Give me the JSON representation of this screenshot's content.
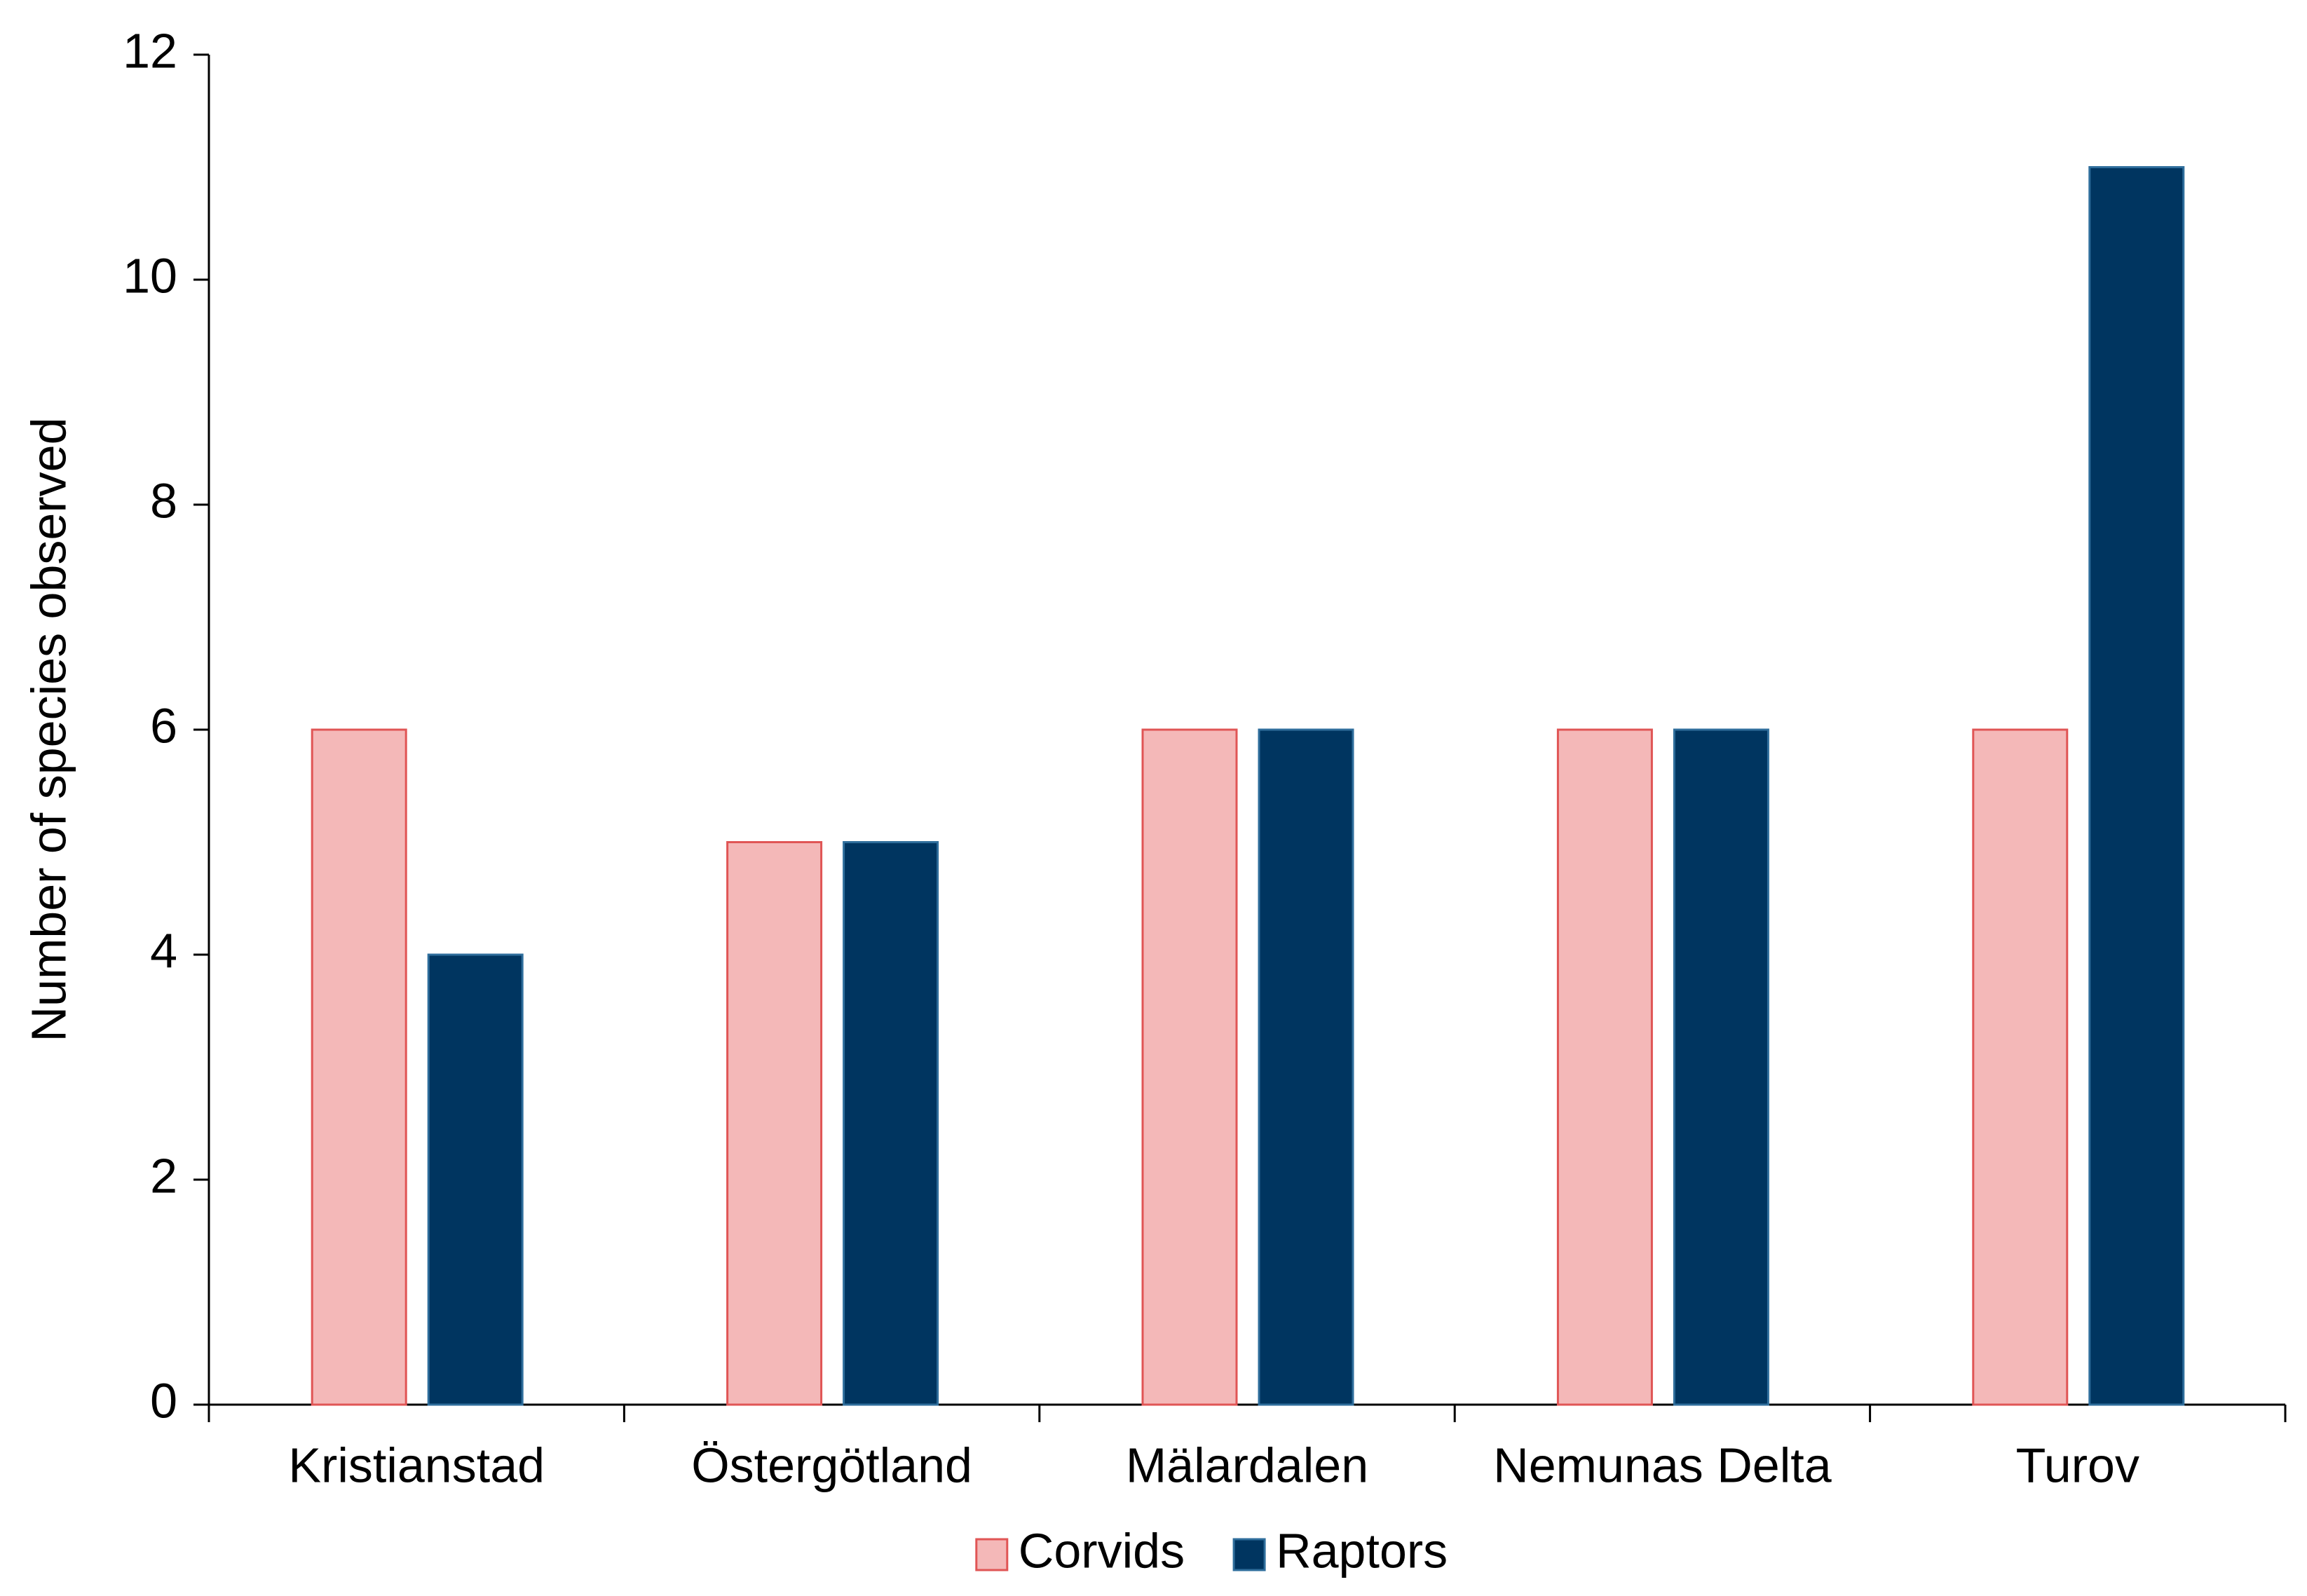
{
  "chart_data": {
    "type": "bar",
    "y_label": "Number of species observed",
    "categories": [
      "Kristianstad",
      "Östergötland",
      "Mälardalen",
      "Nemunas Delta",
      "Turov"
    ],
    "series": [
      {
        "name": "Corvids",
        "color": "#f4b8b8",
        "stroke": "#e05555",
        "values": [
          6,
          5,
          6,
          6,
          6
        ]
      },
      {
        "name": "Raptors",
        "color": "#003560",
        "stroke": "#2f6e9c",
        "values": [
          4,
          5,
          6,
          6,
          11
        ]
      }
    ],
    "ylim": [
      0,
      12
    ],
    "yticks": [
      0,
      2,
      4,
      6,
      8,
      10,
      12
    ],
    "grid": false,
    "legend": "bottom"
  }
}
